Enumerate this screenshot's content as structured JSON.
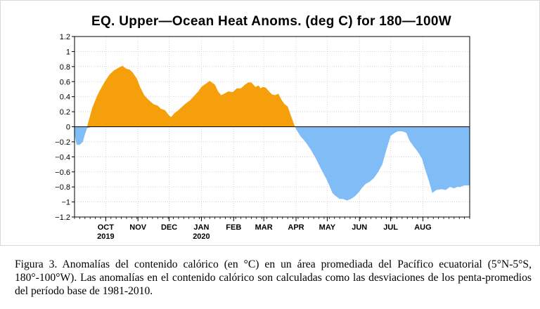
{
  "chart_data": {
    "type": "area",
    "title": "EQ. Upper—Ocean Heat Anoms. (deg C) for 180—100W",
    "xlabel": "",
    "ylabel": "",
    "ylim": [
      -1.2,
      1.2
    ],
    "yticks": [
      1.2,
      1,
      0.8,
      0.6,
      0.4,
      0.2,
      0,
      -0.2,
      -0.4,
      -0.6,
      -0.8,
      -1,
      -1.2
    ],
    "ytick_labels": [
      "1.2",
      "1",
      "0.8",
      "0.6",
      "0.4",
      "0.2",
      "0",
      "−0.2",
      "−0.4",
      "−0.6",
      "−0.8",
      "−1",
      "−1.2"
    ],
    "xlim": [
      "2019-09-01",
      "2020-09-15"
    ],
    "month_ticks": [
      {
        "date": "2019-10-01",
        "label": "OCT",
        "year": "2019"
      },
      {
        "date": "2019-11-01",
        "label": "NOV",
        "year": ""
      },
      {
        "date": "2019-12-01",
        "label": "DEC",
        "year": ""
      },
      {
        "date": "2020-01-01",
        "label": "JAN",
        "year": "2020"
      },
      {
        "date": "2020-02-01",
        "label": "FEB",
        "year": ""
      },
      {
        "date": "2020-03-01",
        "label": "MAR",
        "year": ""
      },
      {
        "date": "2020-04-01",
        "label": "APR",
        "year": ""
      },
      {
        "date": "2020-05-01",
        "label": "MAY",
        "year": ""
      },
      {
        "date": "2020-06-01",
        "label": "JUN",
        "year": ""
      },
      {
        "date": "2020-07-01",
        "label": "JUL",
        "year": ""
      },
      {
        "date": "2020-08-01",
        "label": "AUG",
        "year": ""
      }
    ],
    "grid": true,
    "positive_color": "#f5a00a",
    "negative_color": "#80bdf6",
    "series": [
      {
        "x": [
          "2019-09-01",
          "2019-09-03",
          "2019-09-06",
          "2019-09-09",
          "2019-09-11",
          "2019-09-13",
          "2019-09-18",
          "2019-09-23",
          "2019-09-26",
          "2019-10-01",
          "2019-10-05",
          "2019-10-09",
          "2019-10-14",
          "2019-10-17",
          "2019-10-21",
          "2019-10-24",
          "2019-10-27",
          "2019-10-31",
          "2019-11-03",
          "2019-11-07",
          "2019-11-11",
          "2019-11-16",
          "2019-11-20",
          "2019-11-23",
          "2019-11-27",
          "2019-12-01",
          "2019-12-03",
          "2019-12-06",
          "2019-12-09",
          "2019-12-13",
          "2019-12-17",
          "2019-12-21",
          "2019-12-25",
          "2019-12-29",
          "2020-01-01",
          "2020-01-04",
          "2020-01-07",
          "2020-01-09",
          "2020-01-11",
          "2020-01-14",
          "2020-01-17",
          "2020-01-20",
          "2020-01-23",
          "2020-01-27",
          "2020-01-31",
          "2020-02-04",
          "2020-02-08",
          "2020-02-12",
          "2020-02-15",
          "2020-02-18",
          "2020-02-22",
          "2020-02-25",
          "2020-02-27",
          "2020-02-29",
          "2020-03-03",
          "2020-03-06",
          "2020-03-09",
          "2020-03-12",
          "2020-03-15",
          "2020-03-18",
          "2020-03-21",
          "2020-03-24",
          "2020-03-27",
          "2020-03-31",
          "2020-04-01",
          "2020-04-05",
          "2020-04-10",
          "2020-04-15",
          "2020-04-20",
          "2020-04-25",
          "2020-04-30",
          "2020-05-03",
          "2020-05-06",
          "2020-05-09",
          "2020-05-13",
          "2020-05-16",
          "2020-05-20",
          "2020-05-24",
          "2020-05-28",
          "2020-06-01",
          "2020-06-03",
          "2020-06-07",
          "2020-06-11",
          "2020-06-15",
          "2020-06-19",
          "2020-06-23",
          "2020-06-27",
          "2020-07-01",
          "2020-07-05",
          "2020-07-08",
          "2020-07-12",
          "2020-07-16",
          "2020-07-19",
          "2020-07-23",
          "2020-07-27",
          "2020-07-31",
          "2020-08-03",
          "2020-08-07",
          "2020-08-10",
          "2020-08-14",
          "2020-08-19",
          "2020-08-23",
          "2020-08-27",
          "2020-08-31",
          "2020-09-03",
          "2020-09-06",
          "2020-09-10",
          "2020-09-15"
        ],
        "values": [
          -0.1,
          -0.24,
          -0.24,
          -0.2,
          -0.1,
          -0.02,
          0.25,
          0.42,
          0.5,
          0.62,
          0.7,
          0.75,
          0.79,
          0.81,
          0.77,
          0.76,
          0.72,
          0.64,
          0.53,
          0.42,
          0.36,
          0.3,
          0.28,
          0.24,
          0.22,
          0.15,
          0.13,
          0.18,
          0.21,
          0.26,
          0.31,
          0.35,
          0.41,
          0.47,
          0.53,
          0.56,
          0.59,
          0.61,
          0.59,
          0.56,
          0.47,
          0.42,
          0.44,
          0.47,
          0.46,
          0.51,
          0.51,
          0.56,
          0.59,
          0.59,
          0.53,
          0.55,
          0.51,
          0.53,
          0.52,
          0.47,
          0.43,
          0.42,
          0.44,
          0.36,
          0.3,
          0.27,
          0.15,
          0.0,
          -0.03,
          -0.12,
          -0.2,
          -0.3,
          -0.42,
          -0.56,
          -0.69,
          -0.78,
          -0.88,
          -0.92,
          -0.96,
          -0.96,
          -0.98,
          -0.96,
          -0.92,
          -0.86,
          -0.82,
          -0.76,
          -0.73,
          -0.68,
          -0.6,
          -0.5,
          -0.3,
          -0.12,
          -0.08,
          -0.06,
          -0.06,
          -0.08,
          -0.18,
          -0.26,
          -0.33,
          -0.42,
          -0.56,
          -0.73,
          -0.88,
          -0.84,
          -0.83,
          -0.84,
          -0.8,
          -0.82,
          -0.8,
          -0.8,
          -0.78,
          -0.78
        ]
      }
    ]
  },
  "caption": "Figura 3. Anomalías del contenido calórico (en °C) en un área promediada del Pacífico ecuatorial (5°N-5°S, 180°-100°W). Las anomalías en el contenido calórico son calculadas como las desviaciones de los penta-promedios del período base de 1981-2010."
}
